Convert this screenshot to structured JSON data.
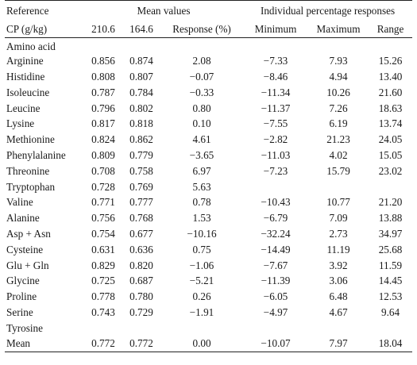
{
  "header": {
    "reference": "Reference",
    "mean_values": "Mean values",
    "individual": "Individual percentage responses",
    "cp": "CP (g/kg)",
    "cp_a": "210.6",
    "cp_b": "164.6",
    "response": "Response (%)",
    "minimum": "Minimum",
    "maximum": "Maximum",
    "range": "Range"
  },
  "rows": [
    {
      "name": "Amino acid",
      "a": "",
      "b": "",
      "resp": "",
      "min": "",
      "max": "",
      "range": ""
    },
    {
      "name": "Arginine",
      "a": "0.856",
      "b": "0.874",
      "resp": "2.08",
      "min": "−7.33",
      "max": "7.93",
      "range": "15.26"
    },
    {
      "name": "Histidine",
      "a": "0.808",
      "b": "0.807",
      "resp": "−0.07",
      "min": "−8.46",
      "max": "4.94",
      "range": "13.40"
    },
    {
      "name": "Isoleucine",
      "a": "0.787",
      "b": "0.784",
      "resp": "−0.33",
      "min": "−11.34",
      "max": "10.26",
      "range": "21.60"
    },
    {
      "name": "Leucine",
      "a": "0.796",
      "b": "0.802",
      "resp": "0.80",
      "min": "−11.37",
      "max": "7.26",
      "range": "18.63"
    },
    {
      "name": "Lysine",
      "a": "0.817",
      "b": "0.818",
      "resp": "0.10",
      "min": "−7.55",
      "max": "6.19",
      "range": "13.74"
    },
    {
      "name": "Methionine",
      "a": "0.824",
      "b": "0.862",
      "resp": "4.61",
      "min": "−2.82",
      "max": "21.23",
      "range": "24.05"
    },
    {
      "name": "Phenylalanine",
      "a": "0.809",
      "b": "0.779",
      "resp": "−3.65",
      "min": "−11.03",
      "max": "4.02",
      "range": "15.05"
    },
    {
      "name": "Threonine",
      "a": "0.708",
      "b": "0.758",
      "resp": "6.97",
      "min": "−7.23",
      "max": "15.79",
      "range": "23.02"
    },
    {
      "name": "Tryptophan",
      "a": "0.728",
      "b": "0.769",
      "resp": "5.63",
      "min": "",
      "max": "",
      "range": ""
    },
    {
      "name": "Valine",
      "a": "0.771",
      "b": "0.777",
      "resp": "0.78",
      "min": "−10.43",
      "max": "10.77",
      "range": "21.20"
    },
    {
      "name": "Alanine",
      "a": "0.756",
      "b": "0.768",
      "resp": "1.53",
      "min": "−6.79",
      "max": "7.09",
      "range": "13.88"
    },
    {
      "name": "Asp + Asn",
      "a": "0.754",
      "b": "0.677",
      "resp": "−10.16",
      "min": "−32.24",
      "max": "2.73",
      "range": "34.97"
    },
    {
      "name": "Cysteine",
      "a": "0.631",
      "b": "0.636",
      "resp": "0.75",
      "min": "−14.49",
      "max": "11.19",
      "range": "25.68"
    },
    {
      "name": "Glu + Gln",
      "a": "0.829",
      "b": "0.820",
      "resp": "−1.06",
      "min": "−7.67",
      "max": "3.92",
      "range": "11.59"
    },
    {
      "name": "Glycine",
      "a": "0.725",
      "b": "0.687",
      "resp": "−5.21",
      "min": "−11.39",
      "max": "3.06",
      "range": "14.45"
    },
    {
      "name": "Proline",
      "a": "0.778",
      "b": "0.780",
      "resp": "0.26",
      "min": "−6.05",
      "max": "6.48",
      "range": "12.53"
    },
    {
      "name": "Serine",
      "a": "0.743",
      "b": "0.729",
      "resp": "−1.91",
      "min": "−4.97",
      "max": "4.67",
      "range": "9.64"
    },
    {
      "name": "Tyrosine",
      "a": "",
      "b": "",
      "resp": "",
      "min": "",
      "max": "",
      "range": ""
    },
    {
      "name": "Mean",
      "a": "0.772",
      "b": "0.772",
      "resp": "0.00",
      "min": "−10.07",
      "max": "7.97",
      "range": "18.04"
    }
  ]
}
